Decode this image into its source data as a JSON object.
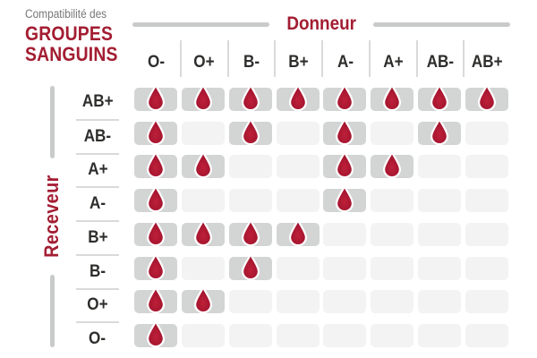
{
  "title": {
    "line1": "Compatibilité des",
    "line2": "GROUPES",
    "line3": "SANGUINS"
  },
  "chart_data": {
    "type": "table",
    "title": "Compatibilité des GROUPES SANGUINS",
    "x_axis_label": "Donneur",
    "y_axis_label": "Receveur",
    "columns": [
      "O-",
      "O+",
      "B-",
      "B+",
      "A-",
      "A+",
      "AB-",
      "AB+"
    ],
    "rows": [
      "AB+",
      "AB-",
      "A+",
      "A-",
      "B+",
      "B-",
      "O+",
      "O-"
    ],
    "matrix": [
      [
        1,
        1,
        1,
        1,
        1,
        1,
        1,
        1
      ],
      [
        1,
        0,
        1,
        0,
        1,
        0,
        1,
        0
      ],
      [
        1,
        1,
        0,
        0,
        1,
        1,
        0,
        0
      ],
      [
        1,
        0,
        0,
        0,
        1,
        0,
        0,
        0
      ],
      [
        1,
        1,
        1,
        1,
        0,
        0,
        0,
        0
      ],
      [
        1,
        0,
        1,
        0,
        0,
        0,
        0,
        0
      ],
      [
        1,
        1,
        0,
        0,
        0,
        0,
        0,
        0
      ],
      [
        1,
        0,
        0,
        0,
        0,
        0,
        0,
        0
      ]
    ],
    "cell_icon": "blood-drop-icon"
  },
  "colors": {
    "accent_red": "#A31D32",
    "drop_red_edge": "#8F1026",
    "drop_red_center": "#BE2039",
    "cell_filled": "#D3D5D4",
    "cell_empty": "#F2F3F2",
    "bar_gray": "#C9CBCA",
    "divider_gray": "#D9DAD9",
    "header_text": "#2E2E2D",
    "subtitle_gray": "#77787A"
  }
}
